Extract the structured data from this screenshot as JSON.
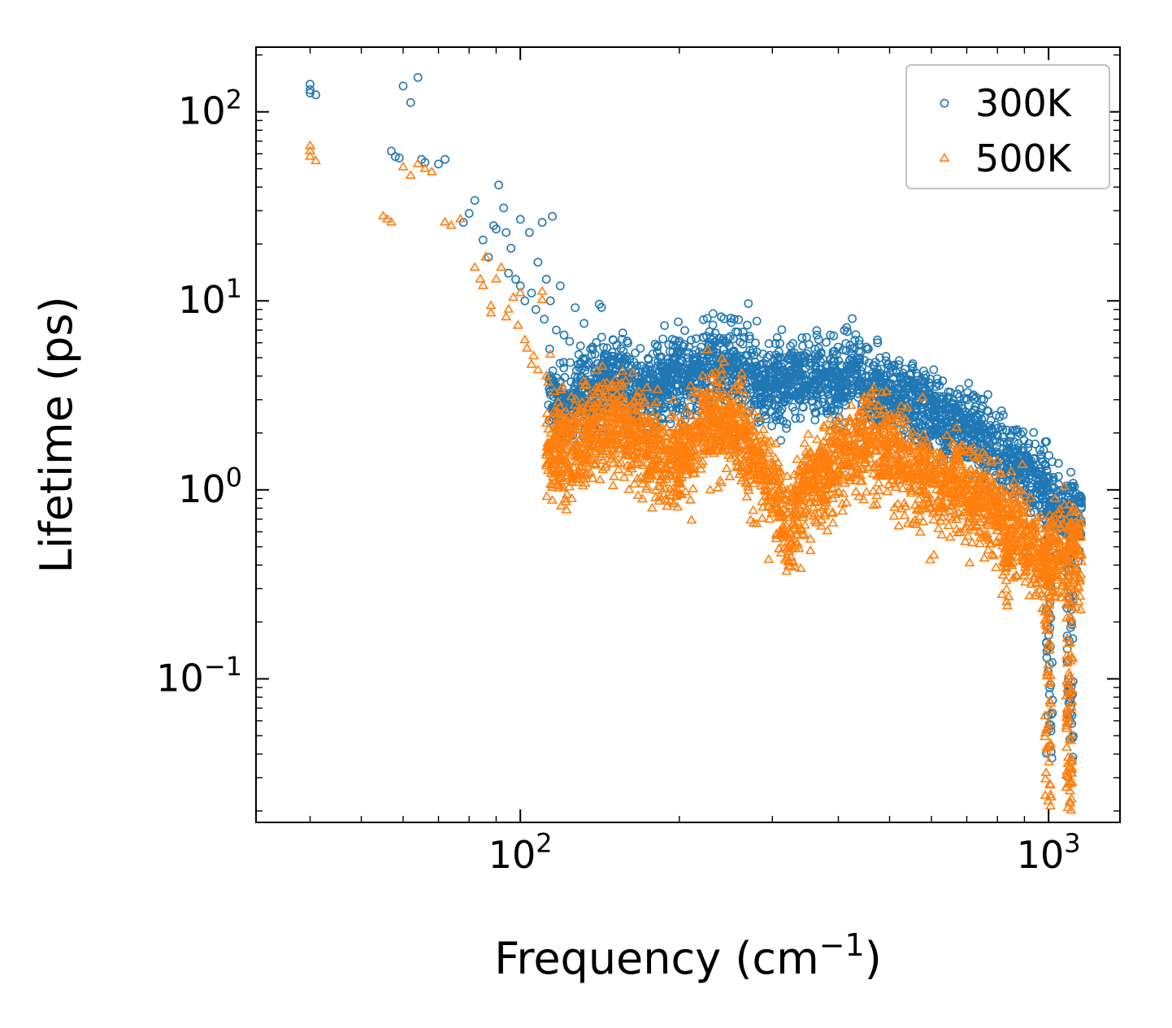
{
  "figure": {
    "background": "#ffffff"
  },
  "chart_data": {
    "type": "scatter",
    "title": "",
    "xlabel": "Frequency (cm⁻¹)",
    "xlabel_rich": {
      "pre": "Frequency (cm",
      "sup": "−1",
      "post": ")"
    },
    "ylabel": "Lifetime (ps)",
    "x_scale": "log",
    "y_scale": "log",
    "xlim": [
      31.6,
      1365
    ],
    "ylim": [
      0.0174,
      220
    ],
    "grid": false,
    "x_major_ticks": [
      100,
      1000
    ],
    "x_major_tick_labels": [
      {
        "base": "10",
        "sup": "2"
      },
      {
        "base": "10",
        "sup": "3"
      }
    ],
    "y_major_ticks": [
      100,
      10,
      1,
      0.1
    ],
    "y_major_tick_labels": [
      {
        "base": "10",
        "sup": "2"
      },
      {
        "base": "10",
        "sup": "1"
      },
      {
        "base": "10",
        "sup": "0"
      },
      {
        "base": "10",
        "sup": "−1"
      }
    ],
    "legend": {
      "position": "upper right",
      "entries": [
        {
          "label": "300K",
          "marker": "circle",
          "color": "#1f77b4"
        },
        {
          "label": "500K",
          "marker": "triangle",
          "color": "#ff7f0e"
        }
      ]
    },
    "series": [
      {
        "name": "300K",
        "marker": "circle",
        "color": "#1f77b4",
        "sparse_points": [
          [
            40,
            140
          ],
          [
            40,
            131
          ],
          [
            40,
            126
          ],
          [
            41,
            123
          ],
          [
            57,
            62
          ],
          [
            58,
            58
          ],
          [
            59,
            57
          ],
          [
            60,
            137
          ],
          [
            62,
            112
          ],
          [
            64,
            152
          ],
          [
            65,
            56
          ],
          [
            66,
            54
          ],
          [
            70,
            53
          ],
          [
            72,
            56
          ],
          [
            78,
            26
          ],
          [
            80,
            29
          ],
          [
            82,
            34
          ],
          [
            85,
            21
          ],
          [
            87,
            17
          ],
          [
            89,
            25
          ],
          [
            90,
            24
          ],
          [
            91,
            41
          ],
          [
            93,
            31
          ],
          [
            94,
            23
          ],
          [
            95,
            14
          ],
          [
            96,
            19
          ],
          [
            98,
            13
          ],
          [
            100,
            27
          ],
          [
            100,
            12
          ],
          [
            102,
            10
          ],
          [
            104,
            23
          ],
          [
            105,
            11
          ],
          [
            107,
            9
          ],
          [
            108,
            16
          ],
          [
            110,
            26
          ],
          [
            111,
            8
          ],
          [
            112,
            13
          ],
          [
            114,
            10
          ],
          [
            115,
            28
          ],
          [
            117,
            7
          ],
          [
            119,
            12
          ],
          [
            121,
            6.6
          ],
          [
            124,
            6.1
          ],
          [
            127,
            9.2
          ],
          [
            129,
            5.2
          ],
          [
            132,
            7.6
          ],
          [
            134,
            4.6
          ],
          [
            137,
            5.7
          ],
          [
            139,
            4.3
          ],
          [
            141,
            9.6
          ],
          [
            144,
            5.1
          ],
          [
            147,
            4.1
          ],
          [
            150,
            6.2
          ],
          [
            152,
            4.6
          ],
          [
            155,
            5.6
          ],
          [
            158,
            3.9
          ],
          [
            161,
            4.9
          ],
          [
            165,
            5.3
          ],
          [
            169,
            3.6
          ],
          [
            174,
            4.1
          ],
          [
            180,
            5.9
          ],
          [
            186,
            4.4
          ],
          [
            192,
            5.4
          ],
          [
            430,
            6.2
          ],
          [
            438,
            5.9
          ],
          [
            452,
            5.7
          ]
        ],
        "band": {
          "f_range": [
            113,
            1155
          ],
          "count": 2600,
          "spread_dex": 0.105,
          "trend": [
            [
              113,
              3.1
            ],
            [
              125,
              2.9
            ],
            [
              133,
              3.3
            ],
            [
              145,
              4.0
            ],
            [
              160,
              3.6
            ],
            [
              178,
              3.3
            ],
            [
              196,
              4.1
            ],
            [
              210,
              3.7
            ],
            [
              228,
              5.0
            ],
            [
              248,
              4.7
            ],
            [
              268,
              4.2
            ],
            [
              290,
              3.4
            ],
            [
              312,
              3.7
            ],
            [
              332,
              4.0
            ],
            [
              360,
              3.8
            ],
            [
              392,
              3.7
            ],
            [
              424,
              4.1
            ],
            [
              452,
              3.5
            ],
            [
              484,
              3.3
            ],
            [
              520,
              3.1
            ],
            [
              560,
              2.8
            ],
            [
              604,
              2.5
            ],
            [
              652,
              2.25
            ],
            [
              704,
              2.05
            ],
            [
              756,
              1.85
            ],
            [
              812,
              1.6
            ],
            [
              864,
              1.4
            ],
            [
              912,
              1.2
            ],
            [
              956,
              1.05
            ],
            [
              1004,
              0.92
            ],
            [
              1052,
              0.82
            ],
            [
              1104,
              0.78
            ],
            [
              1150,
              0.7
            ]
          ]
        },
        "spikes": [
          {
            "f": 1004,
            "count": 55,
            "tau_min": 0.035,
            "tau_max": 0.9
          },
          {
            "f": 1098,
            "count": 75,
            "tau_min": 0.03,
            "tau_max": 1.05
          }
        ]
      },
      {
        "name": "500K",
        "marker": "triangle",
        "color": "#ff7f0e",
        "sparse_points": [
          [
            40,
            66
          ],
          [
            40,
            62
          ],
          [
            40,
            58
          ],
          [
            41,
            55
          ],
          [
            55,
            28
          ],
          [
            56,
            27
          ],
          [
            57,
            26
          ],
          [
            60,
            51
          ],
          [
            62,
            46
          ],
          [
            64,
            53
          ],
          [
            66,
            50
          ],
          [
            68,
            48
          ],
          [
            72,
            26
          ],
          [
            74,
            25
          ],
          [
            77,
            27
          ],
          [
            82,
            15
          ],
          [
            84,
            13
          ],
          [
            85,
            12
          ],
          [
            86,
            17
          ],
          [
            88,
            8.6
          ],
          [
            88,
            9.4
          ],
          [
            90,
            13
          ],
          [
            92,
            15
          ],
          [
            94,
            8.2
          ],
          [
            95,
            9
          ],
          [
            97,
            10.4
          ],
          [
            99,
            7.4
          ],
          [
            100,
            11
          ],
          [
            102,
            6.2
          ],
          [
            103,
            5.6
          ],
          [
            105,
            4.6
          ],
          [
            106,
            5.1
          ],
          [
            108,
            4.3
          ],
          [
            110,
            11.2
          ],
          [
            110,
            10.1
          ],
          [
            112,
            4.0
          ],
          [
            113,
            3.7
          ],
          [
            114,
            5.2
          ],
          [
            116,
            3.3
          ],
          [
            118,
            2.9
          ],
          [
            120,
            3.5
          ],
          [
            122,
            2.6
          ],
          [
            125,
            3.1
          ],
          [
            128,
            2.4
          ],
          [
            131,
            2.9
          ],
          [
            134,
            2.2
          ],
          [
            137,
            2.7
          ],
          [
            140,
            3.3
          ],
          [
            448,
            3.1
          ],
          [
            455,
            2.9
          ],
          [
            462,
            3.3
          ]
        ],
        "band": {
          "f_range": [
            112,
            1155
          ],
          "count": 3000,
          "spread_dex": 0.125,
          "trend": [
            [
              112,
              1.7
            ],
            [
              125,
              1.55
            ],
            [
              133,
              1.8
            ],
            [
              145,
              2.3
            ],
            [
              158,
              2.05
            ],
            [
              172,
              1.7
            ],
            [
              188,
              1.35
            ],
            [
              202,
              1.5
            ],
            [
              218,
              1.9
            ],
            [
              232,
              2.35
            ],
            [
              252,
              2.05
            ],
            [
              272,
              1.6
            ],
            [
              292,
              1.25
            ],
            [
              308,
              0.85
            ],
            [
              320,
              0.55
            ],
            [
              334,
              0.8
            ],
            [
              352,
              1.05
            ],
            [
              382,
              1.25
            ],
            [
              420,
              1.5
            ],
            [
              452,
              1.85
            ],
            [
              486,
              1.65
            ],
            [
              522,
              1.45
            ],
            [
              560,
              1.25
            ],
            [
              602,
              1.08
            ],
            [
              648,
              1.12
            ],
            [
              700,
              0.95
            ],
            [
              752,
              0.86
            ],
            [
              806,
              0.76
            ],
            [
              832,
              0.56
            ],
            [
              862,
              0.66
            ],
            [
              906,
              0.56
            ],
            [
              952,
              0.46
            ],
            [
              1002,
              0.4
            ],
            [
              1054,
              0.46
            ],
            [
              1104,
              0.5
            ],
            [
              1150,
              0.45
            ]
          ]
        },
        "spikes": [
          {
            "f": 836,
            "count": 18,
            "tau_min": 0.22,
            "tau_max": 0.6
          },
          {
            "f": 998,
            "count": 65,
            "tau_min": 0.021,
            "tau_max": 0.7
          },
          {
            "f": 1094,
            "count": 95,
            "tau_min": 0.02,
            "tau_max": 0.85
          }
        ]
      }
    ]
  }
}
